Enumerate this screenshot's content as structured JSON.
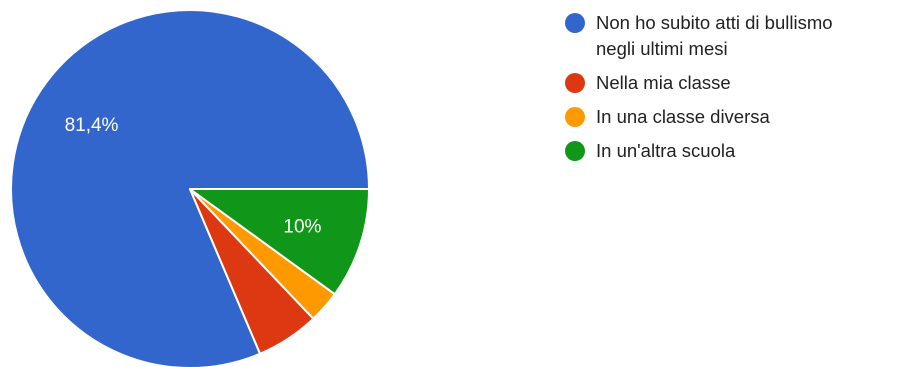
{
  "chart_data": {
    "type": "pie",
    "title": "",
    "slices": [
      {
        "label": "Non ho subito atti di bullismo negli ultimi mesi",
        "value": 81.4,
        "display": "81,4%",
        "color": "#3366cc"
      },
      {
        "label": "Nella mia classe",
        "value": 5.7,
        "display": "",
        "color": "#dc3912"
      },
      {
        "label": "In una classe diversa",
        "value": 2.9,
        "display": "",
        "color": "#ff9900"
      },
      {
        "label": "In un'altra scuola",
        "value": 10.0,
        "display": "10%",
        "color": "#109618"
      }
    ],
    "legend_position": "right"
  },
  "legend": {
    "items": [
      {
        "label_line1": "Non ho subito atti di bullismo",
        "label_line2": "negli ultimi mesi",
        "color": "#3366cc"
      },
      {
        "label_line1": "Nella mia classe",
        "label_line2": "",
        "color": "#dc3912"
      },
      {
        "label_line1": "In una classe diversa",
        "label_line2": "",
        "color": "#ff9900"
      },
      {
        "label_line1": "In un'altra scuola",
        "label_line2": "",
        "color": "#109618"
      }
    ]
  }
}
